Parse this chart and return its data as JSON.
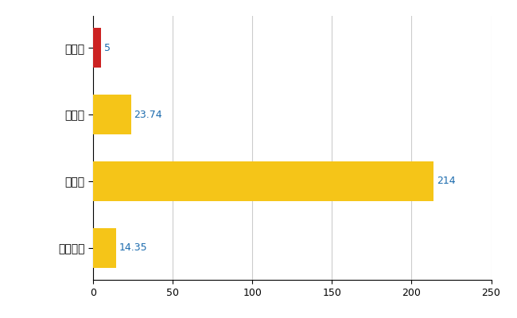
{
  "categories": [
    "阿賀町",
    "県平均",
    "県最大",
    "全国平均"
  ],
  "values": [
    5,
    23.74,
    214,
    14.35
  ],
  "bar_colors": [
    "#cc2222",
    "#f5c518",
    "#f5c518",
    "#f5c518"
  ],
  "value_labels": [
    "5",
    "23.74",
    "214",
    "14.35"
  ],
  "value_label_color": "#1a6aad",
  "xlim": [
    0,
    250
  ],
  "xticks": [
    0,
    50,
    100,
    150,
    200,
    250
  ],
  "grid_color": "#cccccc",
  "background_color": "#ffffff",
  "bar_height": 0.6
}
